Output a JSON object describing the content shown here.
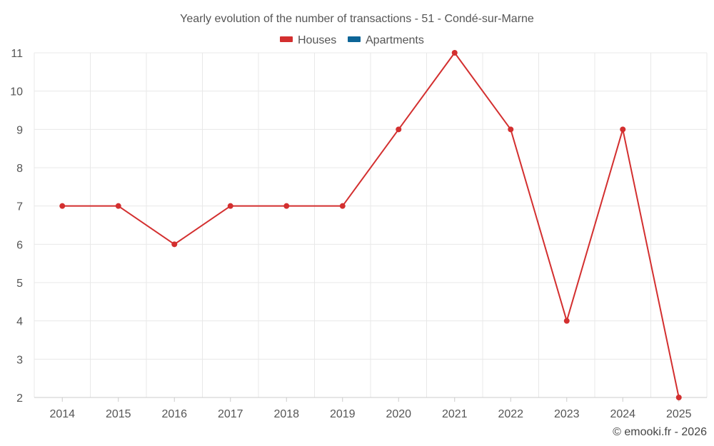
{
  "chart_data": {
    "type": "line",
    "title": "Yearly evolution of the number of transactions - 51 - Condé-sur-Marne",
    "categories": [
      "2014",
      "2015",
      "2016",
      "2017",
      "2018",
      "2019",
      "2020",
      "2021",
      "2022",
      "2023",
      "2024",
      "2025"
    ],
    "y_ticks": [
      "2",
      "3",
      "4",
      "5",
      "6",
      "7",
      "8",
      "9",
      "10",
      "11"
    ],
    "ylim": [
      2,
      11
    ],
    "grid": true,
    "legend": {
      "placement": "top-center",
      "items": [
        {
          "name": "Houses",
          "color": "#d32f2f"
        },
        {
          "name": "Apartments",
          "color": "#0d6597"
        }
      ]
    },
    "series": [
      {
        "name": "Houses",
        "color": "#d32f2f",
        "values": [
          7,
          7,
          6,
          7,
          7,
          7,
          9,
          11,
          9,
          4,
          9,
          2
        ]
      }
    ],
    "credit": "© emooki.fr - 2026"
  }
}
